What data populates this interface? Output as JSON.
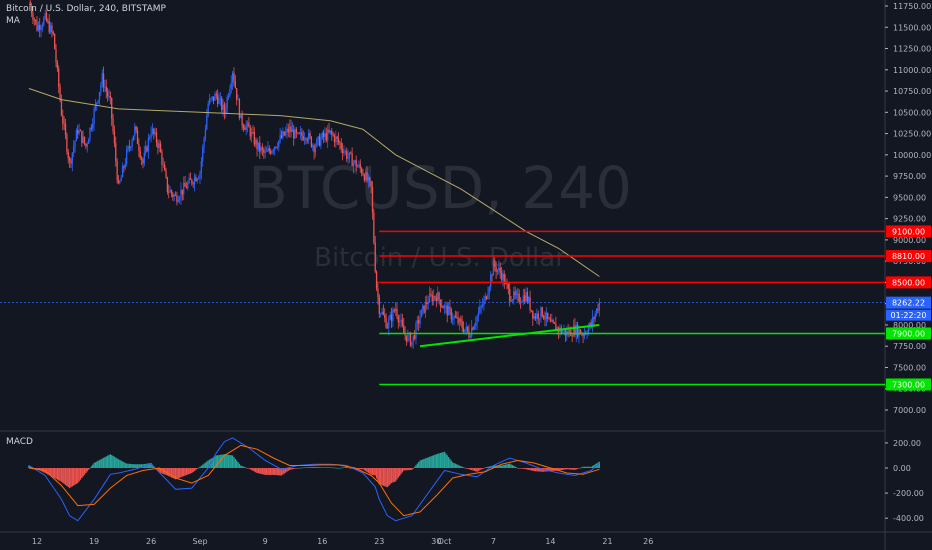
{
  "header": {
    "symbol_title": "Bitcoin / U.S. Dollar, 240, BITSTAMP",
    "ma_label": "MA",
    "macd_label": "MACD"
  },
  "watermark": {
    "symbol": "BTCUSD, 240",
    "name": "Bitcoin / U.S. Dollar"
  },
  "colors": {
    "up": "#2962ff",
    "down": "#ef5350",
    "ma": "#b5a96a",
    "resistance": "#ff0000",
    "support": "#00e600",
    "price_line": "#2962ff",
    "macd_line": "#2962ff",
    "signal_line": "#ff6d00",
    "hist_up": "#26a69a",
    "hist_down": "#ef5350"
  },
  "chart_data": [
    {
      "type": "candlestick",
      "title": "Bitcoin / U.S. Dollar, 240, BITSTAMP",
      "ylim": [
        6700,
        11900
      ],
      "y_ticks": [
        7000,
        7250,
        7500,
        7750,
        8000,
        8250,
        8500,
        8750,
        9000,
        9250,
        9500,
        9750,
        10000,
        10250,
        10500,
        10750,
        11000,
        11250,
        11500,
        11750
      ],
      "y_tick_labels": [
        "7000.00",
        "7250.00",
        "7500.00",
        "7750.00",
        "8000.00",
        "8250.00",
        "8500.00",
        "8750.00",
        "9000.00",
        "9250.00",
        "9500.00",
        "9750.00",
        "10000.00",
        "10250.00",
        "10500.00",
        "10750.00",
        "11000.00",
        "11250.00",
        "11500.00",
        "11750.00"
      ],
      "x_ticks": [
        {
          "label": "12",
          "day": 0
        },
        {
          "label": "19",
          "day": 7
        },
        {
          "label": "26",
          "day": 14
        },
        {
          "label": "Sep",
          "day": 20
        },
        {
          "label": "9",
          "day": 28
        },
        {
          "label": "16",
          "day": 35
        },
        {
          "label": "23",
          "day": 42
        },
        {
          "label": "30",
          "day": 49
        },
        {
          "label": "Oct",
          "day": 50
        },
        {
          "label": "7",
          "day": 56
        },
        {
          "label": "14",
          "day": 63
        },
        {
          "label": "21",
          "day": 70
        },
        {
          "label": "26",
          "day": 75
        }
      ],
      "x_range_days": [
        -1,
        79
      ],
      "close_path": [
        [
          -1,
          11800
        ],
        [
          0,
          11500
        ],
        [
          1,
          11600
        ],
        [
          2,
          11400
        ],
        [
          3,
          10500
        ],
        [
          4,
          9900
        ],
        [
          5,
          10300
        ],
        [
          6,
          10100
        ],
        [
          7,
          10500
        ],
        [
          8,
          10900
        ],
        [
          9,
          10600
        ],
        [
          10,
          9600
        ],
        [
          11,
          10000
        ],
        [
          12,
          10300
        ],
        [
          13,
          9900
        ],
        [
          14,
          10300
        ],
        [
          15,
          10100
        ],
        [
          16,
          9600
        ],
        [
          17,
          9500
        ],
        [
          18,
          9600
        ],
        [
          19,
          9700
        ],
        [
          20,
          9800
        ],
        [
          21,
          10600
        ],
        [
          22,
          10700
        ],
        [
          23,
          10500
        ],
        [
          24,
          11000
        ],
        [
          25,
          10400
        ],
        [
          26,
          10300
        ],
        [
          27,
          10100
        ],
        [
          28,
          10000
        ],
        [
          29,
          10100
        ],
        [
          30,
          10200
        ],
        [
          31,
          10300
        ],
        [
          32,
          10200
        ],
        [
          33,
          10250
        ],
        [
          34,
          10100
        ],
        [
          35,
          10200
        ],
        [
          36,
          10250
        ],
        [
          37,
          10150
        ],
        [
          38,
          10000
        ],
        [
          39,
          9900
        ],
        [
          40,
          9800
        ],
        [
          41,
          9600
        ],
        [
          41.6,
          8500
        ],
        [
          42,
          8200
        ],
        [
          43,
          8000
        ],
        [
          44,
          8200
        ],
        [
          45,
          7900
        ],
        [
          46,
          7800
        ],
        [
          47,
          8100
        ],
        [
          48,
          8300
        ],
        [
          49,
          8350
        ],
        [
          50,
          8200
        ],
        [
          51,
          8100
        ],
        [
          52,
          8000
        ],
        [
          53,
          7900
        ],
        [
          54,
          8100
        ],
        [
          55,
          8300
        ],
        [
          56,
          8700
        ],
        [
          57,
          8600
        ],
        [
          58,
          8350
        ],
        [
          59,
          8300
        ],
        [
          60,
          8350
        ],
        [
          61,
          8100
        ],
        [
          62,
          8150
        ],
        [
          63,
          8000
        ],
        [
          64,
          7950
        ],
        [
          65,
          7900
        ],
        [
          66,
          7950
        ],
        [
          67,
          7900
        ],
        [
          68,
          8000
        ],
        [
          69,
          8262.22
        ]
      ],
      "ma_path": [
        [
          -1,
          10780
        ],
        [
          3,
          10650
        ],
        [
          10,
          10540
        ],
        [
          20,
          10500
        ],
        [
          30,
          10460
        ],
        [
          36,
          10400
        ],
        [
          40,
          10300
        ],
        [
          44,
          10000
        ],
        [
          48,
          9800
        ],
        [
          52,
          9600
        ],
        [
          56,
          9350
        ],
        [
          60,
          9100
        ],
        [
          64,
          8900
        ],
        [
          69,
          8570
        ]
      ],
      "resistance_levels": [
        9100.0,
        8810.0,
        8500.0
      ],
      "support_levels": [
        7900.0,
        7300.0
      ],
      "level_start_day": 42,
      "level_labels": {
        "9100": "9100.00",
        "8810": "8810.00",
        "8500": "8500.00",
        "7900": "7900.00",
        "7300": "7300.00"
      },
      "trendline": [
        [
          47,
          7750
        ],
        [
          69,
          8000
        ]
      ],
      "current_price": 8262.22,
      "current_price_label": "8262.22",
      "countdown_label": "01:22:20"
    },
    {
      "type": "macd",
      "title": "MACD",
      "ylim": [
        -480,
        280
      ],
      "y_ticks": [
        200,
        0,
        -200,
        -400
      ],
      "y_tick_labels": [
        "200.00",
        "0.00",
        "-200.00",
        "-400.00"
      ],
      "macd_path": [
        [
          -1,
          20
        ],
        [
          1,
          -60
        ],
        [
          3,
          -250
        ],
        [
          4,
          -380
        ],
        [
          5,
          -420
        ],
        [
          7,
          -250
        ],
        [
          9,
          -50
        ],
        [
          10,
          -40
        ],
        [
          12,
          -10
        ],
        [
          14,
          30
        ],
        [
          16,
          -100
        ],
        [
          17,
          -170
        ],
        [
          19,
          -160
        ],
        [
          21,
          0
        ],
        [
          22,
          120
        ],
        [
          23,
          210
        ],
        [
          24,
          240
        ],
        [
          26,
          160
        ],
        [
          28,
          60
        ],
        [
          30,
          -10
        ],
        [
          32,
          20
        ],
        [
          34,
          30
        ],
        [
          36,
          30
        ],
        [
          38,
          20
        ],
        [
          40,
          -40
        ],
        [
          41.5,
          -150
        ],
        [
          42,
          -250
        ],
        [
          43,
          -380
        ],
        [
          44,
          -420
        ],
        [
          46,
          -380
        ],
        [
          48,
          -200
        ],
        [
          50,
          -20
        ],
        [
          52,
          -50
        ],
        [
          54,
          -70
        ],
        [
          56,
          20
        ],
        [
          58,
          80
        ],
        [
          60,
          40
        ],
        [
          62,
          -10
        ],
        [
          64,
          -40
        ],
        [
          66,
          -60
        ],
        [
          68,
          -20
        ],
        [
          69,
          40
        ]
      ],
      "signal_path": [
        [
          -1,
          0
        ],
        [
          1,
          -20
        ],
        [
          3,
          -140
        ],
        [
          5,
          -300
        ],
        [
          7,
          -290
        ],
        [
          9,
          -160
        ],
        [
          11,
          -60
        ],
        [
          13,
          -20
        ],
        [
          15,
          0
        ],
        [
          17,
          -80
        ],
        [
          19,
          -120
        ],
        [
          21,
          -60
        ],
        [
          23,
          100
        ],
        [
          25,
          180
        ],
        [
          27,
          150
        ],
        [
          29,
          80
        ],
        [
          31,
          20
        ],
        [
          33,
          20
        ],
        [
          35,
          25
        ],
        [
          37,
          25
        ],
        [
          39,
          0
        ],
        [
          41,
          -60
        ],
        [
          42,
          -120
        ],
        [
          43.5,
          -280
        ],
        [
          45,
          -380
        ],
        [
          47,
          -350
        ],
        [
          49,
          -220
        ],
        [
          51,
          -80
        ],
        [
          53,
          -50
        ],
        [
          55,
          -30
        ],
        [
          57,
          30
        ],
        [
          59,
          60
        ],
        [
          61,
          40
        ],
        [
          63,
          0
        ],
        [
          65,
          -40
        ],
        [
          67,
          -50
        ],
        [
          69,
          -10
        ]
      ]
    }
  ]
}
